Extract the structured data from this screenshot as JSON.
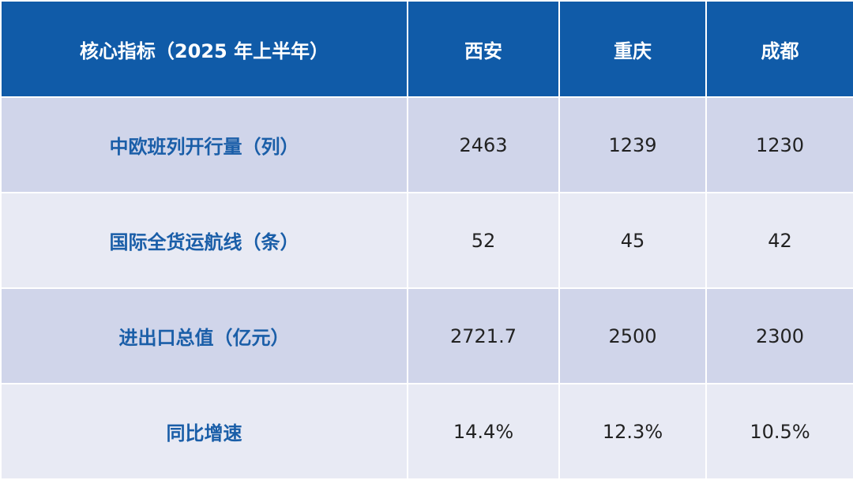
{
  "table": {
    "header": [
      "核心指标（2025 年上半年）",
      "西安",
      "重庆",
      "成都"
    ],
    "rows": [
      [
        "中欧班列开行量（列）",
        "2463",
        "1239",
        "1230"
      ],
      [
        "国际全货运航线（条）",
        "52",
        "45",
        "42"
      ],
      [
        "进出口总值（亿元）",
        "2721.7",
        "2500",
        "2300"
      ],
      [
        "同比增速",
        "14.4%",
        "12.3%",
        "10.5%"
      ]
    ]
  }
}
